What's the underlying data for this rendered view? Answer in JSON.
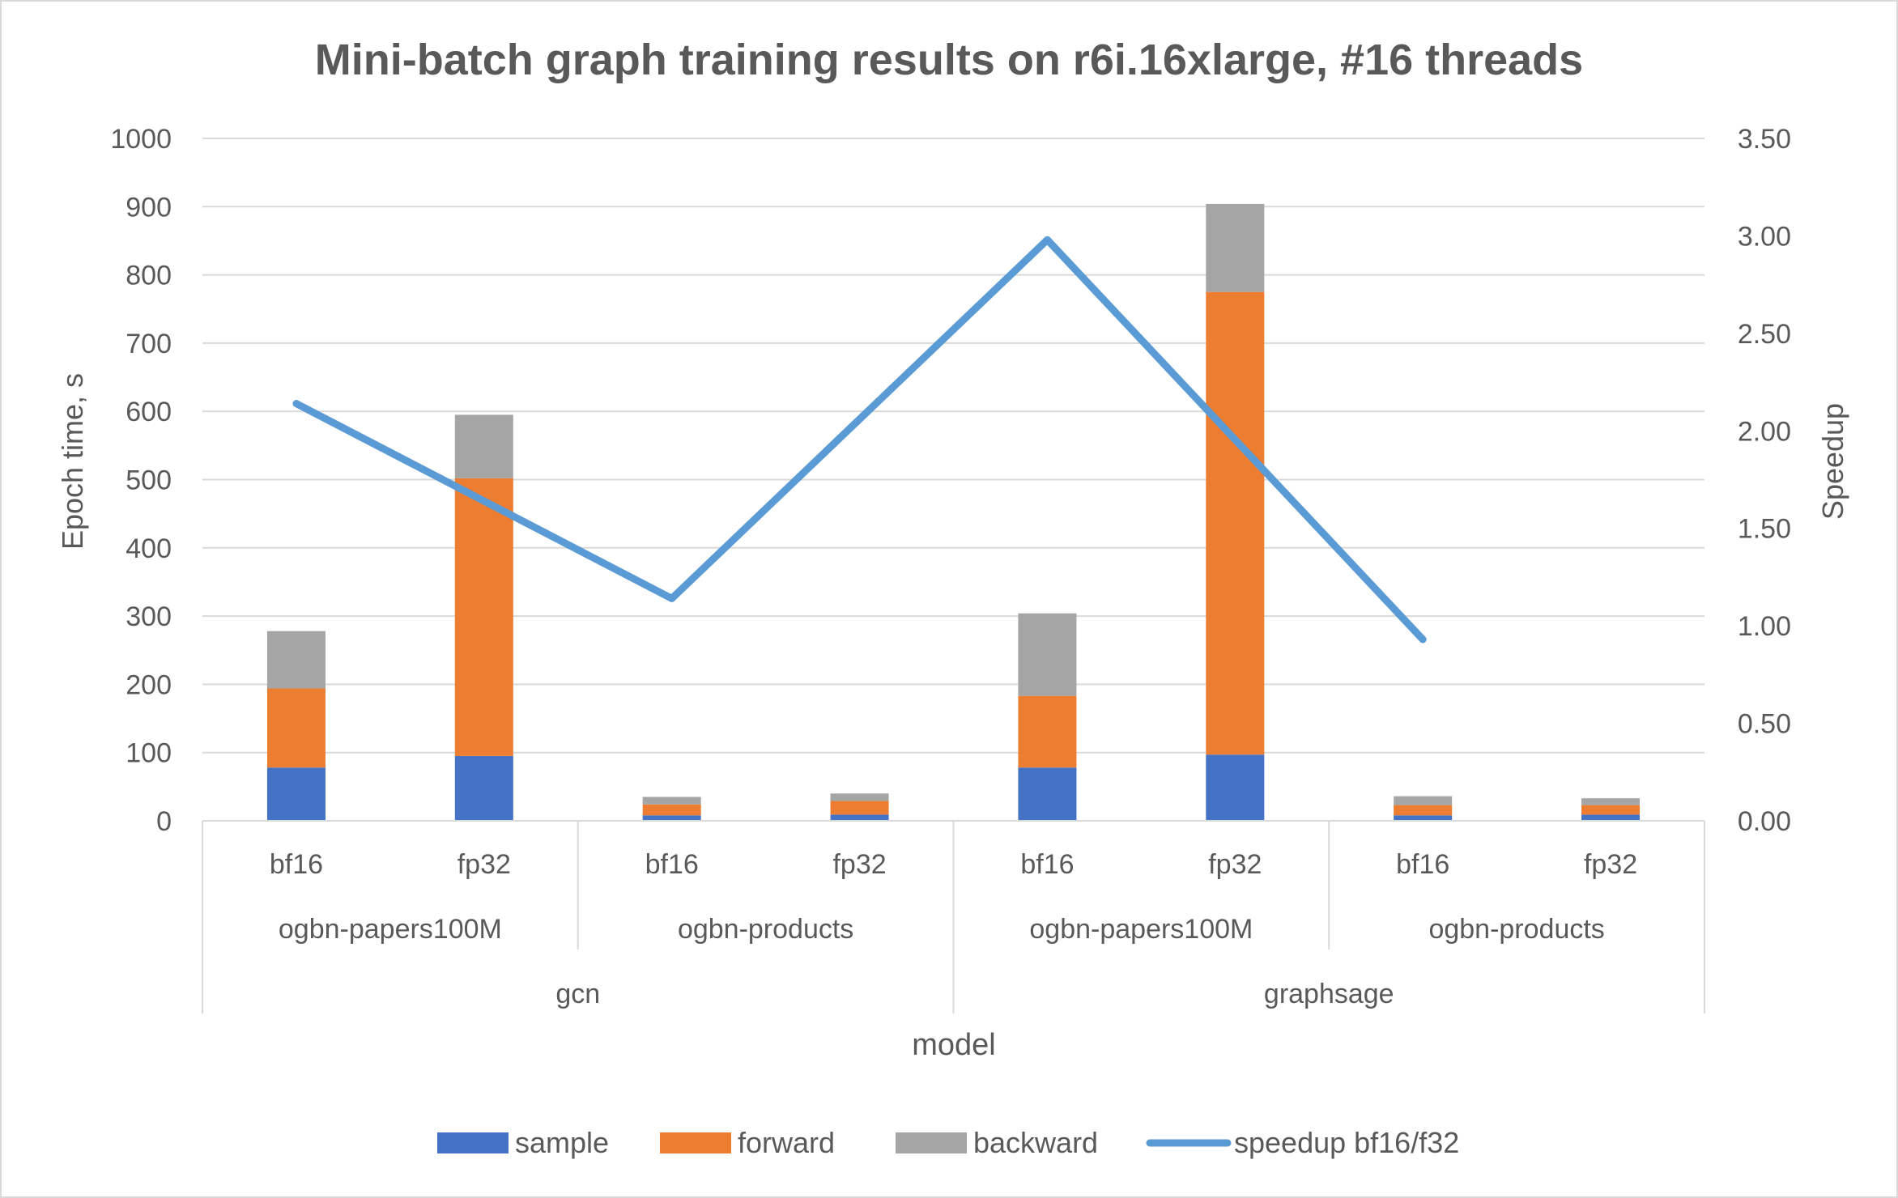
{
  "chart_data": {
    "type": "bar",
    "stacked": true,
    "title": "Mini-batch graph training results on r6i.16xlarge, #16 threads",
    "xlabel": "model",
    "ylabel": "Epoch time, s",
    "y2label": "Speedup",
    "ylim": [
      0,
      1000
    ],
    "y2lim": [
      0,
      3.5
    ],
    "yticks": [
      "0",
      "100",
      "200",
      "300",
      "400",
      "500",
      "600",
      "700",
      "800",
      "900",
      "1000"
    ],
    "y2ticks": [
      "0.00",
      "0.50",
      "1.00",
      "1.50",
      "2.00",
      "2.50",
      "3.00",
      "3.50"
    ],
    "grid": true,
    "legend_position": "bottom",
    "categories": [
      "bf16",
      "fp32",
      "bf16",
      "fp32",
      "bf16",
      "fp32",
      "bf16",
      "fp32"
    ],
    "group_level1": [
      "ogbn-papers100M",
      "ogbn-products",
      "ogbn-papers100M",
      "ogbn-products"
    ],
    "group_level2": [
      "gcn",
      "graphsage"
    ],
    "series": [
      {
        "name": "sample",
        "type": "bar",
        "color": "#4472C4",
        "values": [
          78,
          95,
          8,
          9,
          78,
          97,
          8,
          9
        ]
      },
      {
        "name": "forward",
        "type": "bar",
        "color": "#ED7D31",
        "values": [
          116,
          407,
          16,
          20,
          105,
          678,
          15,
          14
        ]
      },
      {
        "name": "backward",
        "type": "bar",
        "color": "#A5A5A5",
        "values": [
          84,
          93,
          11,
          11,
          121,
          129,
          13,
          10
        ]
      },
      {
        "name": "speedup bf16/f32",
        "type": "line",
        "axis": "secondary",
        "color": "#5B9BD5",
        "values": [
          2.14,
          null,
          1.14,
          null,
          2.98,
          null,
          0.93,
          null
        ]
      }
    ]
  }
}
